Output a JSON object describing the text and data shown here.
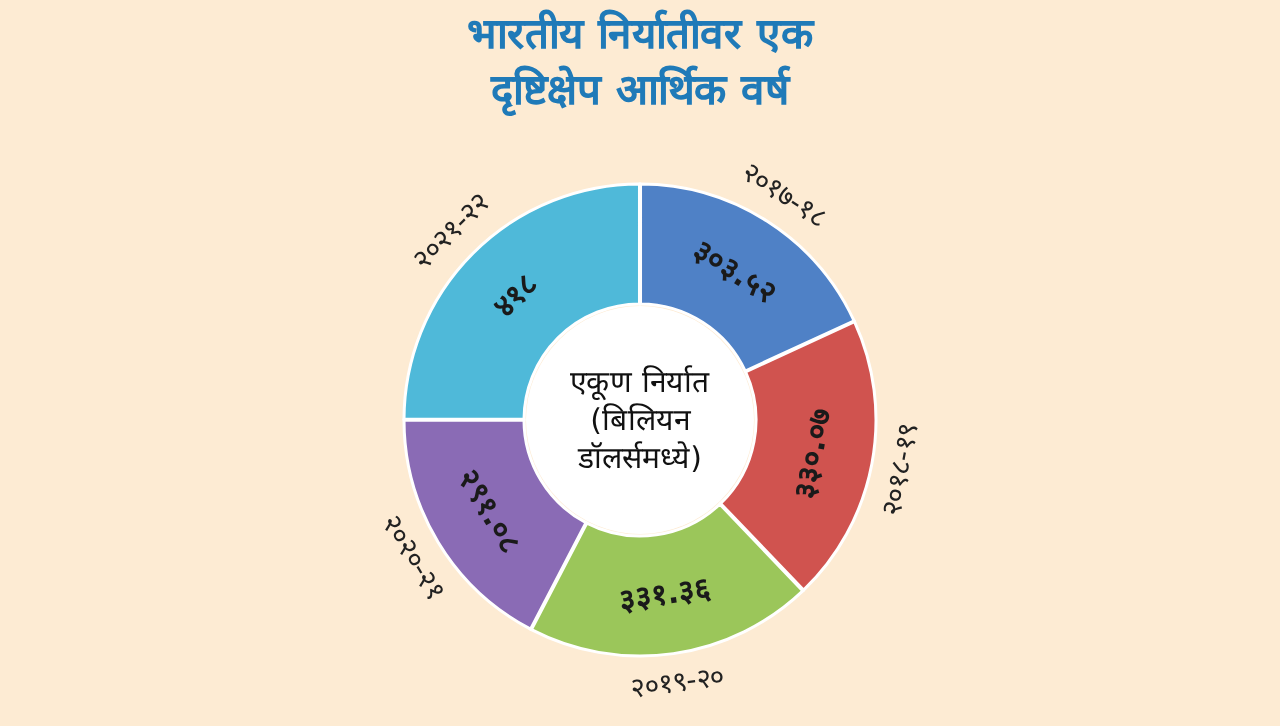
{
  "chart_data": {
    "type": "donut",
    "title": "भारतीय निर्यातीवर एक\nदृष्टिक्षेप आर्थिक वर्ष",
    "categories": [
      "२०१७-१८",
      "२०१८-१९",
      "२०१९-२०",
      "२०२०-२१",
      "२०२१-२२"
    ],
    "values": [
      303.52,
      330.07,
      331.36,
      291.08,
      418
    ],
    "value_labels": [
      "३०३.५२",
      "३३०.०७",
      "३३१.३६",
      "२९१.०८",
      "४१८"
    ],
    "colors": [
      "#4f81c6",
      "#d0534f",
      "#9bc65a",
      "#8a6bb5",
      "#4fb9d9"
    ],
    "annotations": [
      "एकूण निर्यात\n(बिलियन\nडॉलर्समध्ये)"
    ]
  }
}
